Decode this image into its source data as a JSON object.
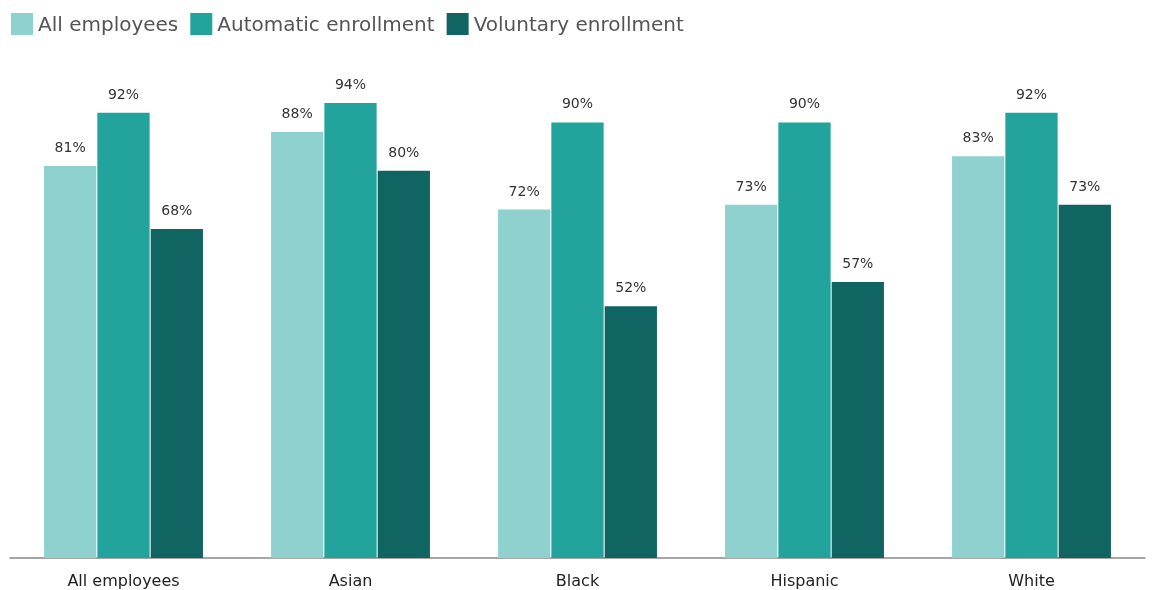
{
  "chart_data": {
    "type": "bar",
    "categories": [
      "All employees",
      "Asian",
      "Black",
      "Hispanic",
      "White"
    ],
    "series": [
      {
        "name": "All employees",
        "color": "#8ed1cf",
        "values": [
          81,
          88,
          72,
          73,
          83
        ],
        "value_labels": [
          "81%",
          "88%",
          "72%",
          "73%",
          "83%"
        ]
      },
      {
        "name": "Automatic enrollment",
        "color": "#22a39b",
        "values": [
          92,
          94,
          90,
          90,
          92
        ],
        "value_labels": [
          "92%",
          "94%",
          "90%",
          "90%",
          "92%"
        ]
      },
      {
        "name": "Voluntary enrollment",
        "color": "#106462",
        "values": [
          68,
          80,
          52,
          57,
          73
        ],
        "value_labels": [
          "68%",
          "80%",
          "52%",
          "57%",
          "73%"
        ]
      }
    ],
    "legend": "top left",
    "grid": false
  }
}
